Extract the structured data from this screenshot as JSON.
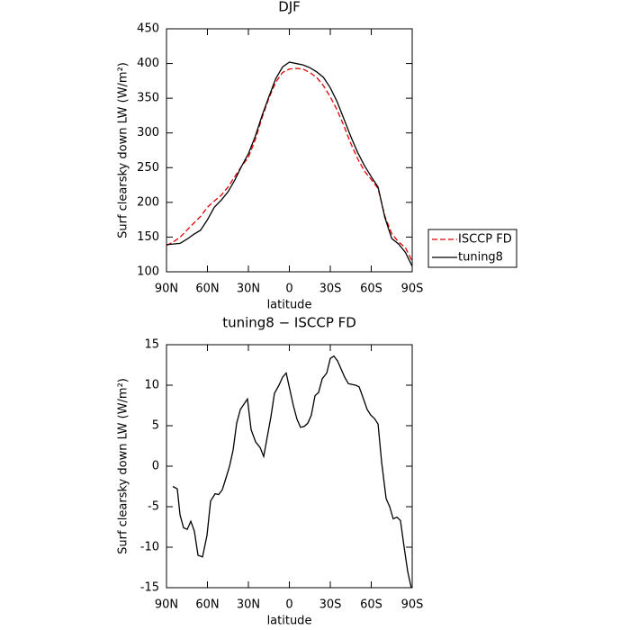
{
  "chart_data": [
    {
      "type": "line",
      "title": "DJF",
      "xlabel": "latitude",
      "ylabel": "Surf clearsky down LW (W/m²)",
      "x": [
        90,
        85,
        80,
        75,
        70,
        65,
        60,
        55,
        50,
        45,
        40,
        35,
        30,
        25,
        20,
        15,
        10,
        5,
        0,
        -5,
        -10,
        -15,
        -20,
        -25,
        -30,
        -35,
        -40,
        -45,
        -50,
        -55,
        -60,
        -65,
        -70,
        -75,
        -80,
        -85,
        -90
      ],
      "series": [
        {
          "name": "ISCCP FD",
          "color": "#e00000",
          "linestyle": "dashed",
          "values": [
            138,
            143,
            150,
            160,
            170,
            180,
            193,
            202,
            210,
            222,
            237,
            252,
            265,
            290,
            322,
            350,
            373,
            387,
            392,
            393,
            392,
            387,
            380,
            368,
            352,
            333,
            310,
            285,
            263,
            245,
            233,
            220,
            180,
            155,
            143,
            135,
            115
          ]
        },
        {
          "name": "tuning8",
          "color": "#000000",
          "linestyle": "solid",
          "values": [
            139,
            140,
            141,
            147,
            154,
            160,
            175,
            193,
            203,
            215,
            232,
            252,
            270,
            295,
            325,
            352,
            378,
            395,
            402,
            400,
            398,
            394,
            388,
            380,
            365,
            345,
            320,
            295,
            272,
            253,
            237,
            222,
            178,
            148,
            140,
            128,
            108
          ]
        }
      ],
      "xlim": [
        90,
        -90
      ],
      "xticks": [
        {
          "value": 90,
          "label": "90N"
        },
        {
          "value": 60,
          "label": "60N"
        },
        {
          "value": 30,
          "label": "30N"
        },
        0,
        {
          "value": -30,
          "label": "30S"
        },
        {
          "value": -60,
          "label": "60S"
        },
        {
          "value": -90,
          "label": "90S"
        }
      ],
      "ylim": [
        100,
        450
      ],
      "yticks": [
        100,
        150,
        200,
        250,
        300,
        350,
        400,
        450
      ],
      "legend": "right"
    },
    {
      "type": "line",
      "title": "tuning8 − ISCCP FD",
      "xlabel": "latitude",
      "ylabel": "Surf clearsky down LW (W/m²)",
      "x": [
        85.4,
        82.1,
        80.1,
        77.5,
        74.8,
        72.2,
        69.6,
        66.9,
        63.6,
        60.3,
        57.7,
        54.4,
        51.8,
        49.1,
        46.5,
        43.8,
        41.2,
        38.6,
        35.9,
        30.7,
        28.0,
        24.7,
        21.4,
        18.8,
        16.2,
        13.5,
        10.9,
        7.6,
        4.9,
        2.3,
        -0.3,
        -2.9,
        -5.6,
        -8.2,
        -10.8,
        -13.5,
        -16.1,
        -18.8,
        -21.4,
        -24.1,
        -27.4,
        -30.0,
        -32.6,
        -35.3,
        -37.9,
        -40.5,
        -43.2,
        -45.8,
        -48.5,
        -51.1,
        -53.7,
        -57.0,
        -59.7,
        -62.3,
        -65.0,
        -67.6,
        -70.9,
        -73.5,
        -76.1,
        -78.8,
        -81.4,
        -84.1,
        -86.7,
        -89.3
      ],
      "series": [
        {
          "color": "#000000",
          "linestyle": "solid",
          "values": [
            -2.5,
            -2.8,
            -6,
            -7.6,
            -7.8,
            -6.8,
            -8,
            -11,
            -11.2,
            -8.5,
            -4.3,
            -3.4,
            -3.5,
            -2.9,
            -1.5,
            0,
            2,
            5.3,
            7,
            8.3,
            4.5,
            3,
            2.3,
            1.2,
            3.6,
            6.1,
            9,
            10,
            11,
            11.5,
            9.5,
            7.5,
            5.8,
            4.8,
            4.9,
            5.3,
            6.3,
            8.7,
            9.1,
            10.8,
            11.5,
            13.3,
            13.6,
            13,
            12,
            11,
            10.2,
            10.1,
            10,
            9.8,
            8.6,
            7,
            6.3,
            5.9,
            5.2,
            0.5,
            -4,
            -5,
            -6.5,
            -6.3,
            -6.7,
            -10,
            -13,
            -15
          ]
        }
      ],
      "xlim": [
        90,
        -90
      ],
      "xticks": [
        {
          "value": 90,
          "label": "90N"
        },
        {
          "value": 60,
          "label": "60N"
        },
        {
          "value": 30,
          "label": "30N"
        },
        0,
        {
          "value": -30,
          "label": "30S"
        },
        {
          "value": -60,
          "label": "60S"
        },
        {
          "value": -90,
          "label": "90S"
        }
      ],
      "ylim": [
        -15,
        15
      ],
      "yticks": [
        -15,
        -10,
        -5,
        0,
        5,
        10,
        15
      ]
    }
  ]
}
